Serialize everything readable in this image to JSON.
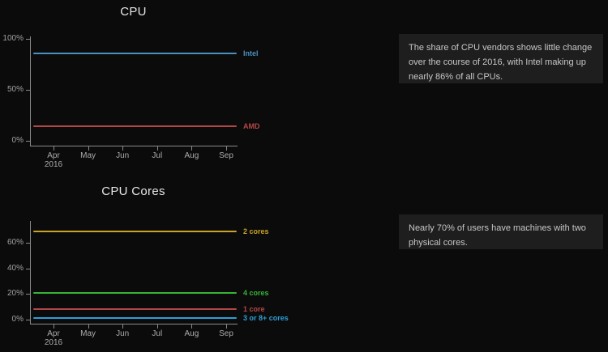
{
  "page": {
    "background": "#0b0b0b",
    "panel_background": "#1e1e1e"
  },
  "chart_data": [
    {
      "type": "line",
      "title": "CPU",
      "x": [
        "Apr 2016",
        "May",
        "Jun",
        "Jul",
        "Aug",
        "Sep"
      ],
      "xlabel": "",
      "ylabel": "",
      "ylim": [
        0,
        102
      ],
      "yticks": [
        0,
        50,
        100
      ],
      "ytick_suffix": "%",
      "grid": false,
      "legend_position": "right-of-line",
      "series": [
        {
          "name": "Intel",
          "color": "#4a8fc2",
          "values": [
            85.3,
            85.4,
            85.4,
            85.5,
            85.6,
            85.9
          ]
        },
        {
          "name": "AMD",
          "color": "#b34747",
          "values": [
            14.7,
            14.6,
            14.6,
            14.5,
            14.4,
            14.1
          ]
        }
      ]
    },
    {
      "type": "line",
      "title": "CPU Cores",
      "x": [
        "Apr 2016",
        "May",
        "Jun",
        "Jul",
        "Aug",
        "Sep"
      ],
      "xlabel": "",
      "ylabel": "",
      "ylim": [
        0,
        77
      ],
      "yticks": [
        0,
        20,
        40,
        60
      ],
      "ytick_suffix": "%",
      "grid": false,
      "legend_position": "right-of-line",
      "series": [
        {
          "name": "2 cores",
          "color": "#c9a227",
          "values": [
            68.8,
            68.9,
            69.0,
            69.1,
            69.3,
            69.4
          ]
        },
        {
          "name": "4 cores",
          "color": "#35b535",
          "values": [
            20.8,
            20.9,
            21.0,
            21.1,
            21.3,
            21.5
          ]
        },
        {
          "name": "1 core",
          "color": "#b34747",
          "values": [
            8.3,
            8.2,
            8.1,
            8.0,
            7.9,
            7.8
          ]
        },
        {
          "name": "3 or 8+ cores",
          "color": "#2f9fd5",
          "values": [
            1.5,
            1.5,
            1.5,
            1.5,
            1.5,
            1.4
          ]
        }
      ]
    }
  ],
  "notes": [
    {
      "text": "The share of CPU vendors shows little change over the course of 2016, with Intel making up nearly 86% of all CPUs."
    },
    {
      "text": "Nearly 70% of users have machines with two physical cores."
    }
  ]
}
